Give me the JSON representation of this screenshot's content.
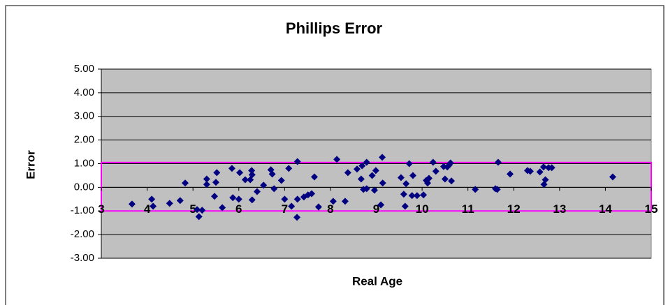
{
  "chart_data": {
    "type": "scatter",
    "title": "Phillips Error",
    "xlabel": "Real Age",
    "ylabel": "Error",
    "color": "#000080",
    "plot_background": "#c0c0c0",
    "grid": true,
    "xlim": [
      3,
      15
    ],
    "xticks": [
      3,
      4,
      5,
      6,
      7,
      8,
      9,
      10,
      11,
      12,
      13,
      14,
      15
    ],
    "ylim": [
      -3,
      5
    ],
    "yticks": [
      {
        "value": -3,
        "label": "-3.00"
      },
      {
        "value": -2,
        "label": "-2.00"
      },
      {
        "value": -1,
        "label": "-1.00"
      },
      {
        "value": 0,
        "label": "0.00"
      },
      {
        "value": 1,
        "label": "1.00"
      },
      {
        "value": 2,
        "label": "2.00"
      },
      {
        "value": 3,
        "label": "3.00"
      },
      {
        "value": 4,
        "label": "4.00"
      },
      {
        "value": 5,
        "label": "5.00"
      }
    ],
    "band": {
      "ymin": -1,
      "ymax": 1.05,
      "color": "#ff00ff"
    },
    "x": [
      3.67,
      4.1,
      4.13,
      4.49,
      4.72,
      4.83,
      5.09,
      5.13,
      5.2,
      5.3,
      5.3,
      5.52,
      5.5,
      5.47,
      5.64,
      5.85,
      5.87,
      6.02,
      6.0,
      6.14,
      6.25,
      6.28,
      6.29,
      6.29,
      6.4,
      6.54,
      6.7,
      6.73,
      6.77,
      6.93,
      7.0,
      7.09,
      7.15,
      7.27,
      7.28,
      7.28,
      7.42,
      7.51,
      7.59,
      7.65,
      7.74,
      8.06,
      8.14,
      8.32,
      8.38,
      8.58,
      8.67,
      8.69,
      8.72,
      8.79,
      8.79,
      8.91,
      8.96,
      8.99,
      9.1,
      9.13,
      9.14,
      9.54,
      9.6,
      9.63,
      9.65,
      9.72,
      9.78,
      9.8,
      9.89,
      10.03,
      10.09,
      10.12,
      10.15,
      10.24,
      10.3,
      10.47,
      10.5,
      10.55,
      10.59,
      10.62,
      10.64,
      11.16,
      11.6,
      11.64,
      11.66,
      11.92,
      12.3,
      12.36,
      12.57,
      12.65,
      12.66,
      12.69,
      12.76,
      12.83,
      14.16
    ],
    "y": [
      -0.71,
      -0.5,
      -0.8,
      -0.68,
      -0.56,
      0.18,
      -0.94,
      -1.24,
      -0.97,
      0.35,
      0.12,
      0.62,
      0.21,
      -0.38,
      -0.86,
      0.8,
      -0.44,
      0.62,
      -0.5,
      0.32,
      0.32,
      0.71,
      0.53,
      -0.53,
      -0.18,
      0.09,
      0.74,
      0.56,
      -0.06,
      0.29,
      -0.5,
      0.8,
      -0.8,
      -1.27,
      -0.5,
      1.09,
      -0.41,
      -0.32,
      -0.27,
      0.44,
      -0.83,
      -0.59,
      1.18,
      -0.59,
      0.62,
      0.77,
      0.35,
      0.91,
      -0.09,
      1.06,
      -0.06,
      0.5,
      -0.12,
      0.71,
      -0.74,
      1.27,
      0.18,
      0.41,
      -0.29,
      -0.8,
      0.15,
      1.0,
      -0.35,
      0.5,
      -0.35,
      -0.32,
      0.29,
      0.18,
      0.38,
      1.06,
      0.68,
      0.88,
      0.35,
      0.86,
      0.94,
      1.03,
      0.27,
      -0.09,
      -0.06,
      -0.09,
      1.06,
      0.56,
      0.71,
      0.68,
      0.65,
      0.86,
      0.12,
      0.32,
      0.83,
      0.83,
      0.44
    ]
  }
}
